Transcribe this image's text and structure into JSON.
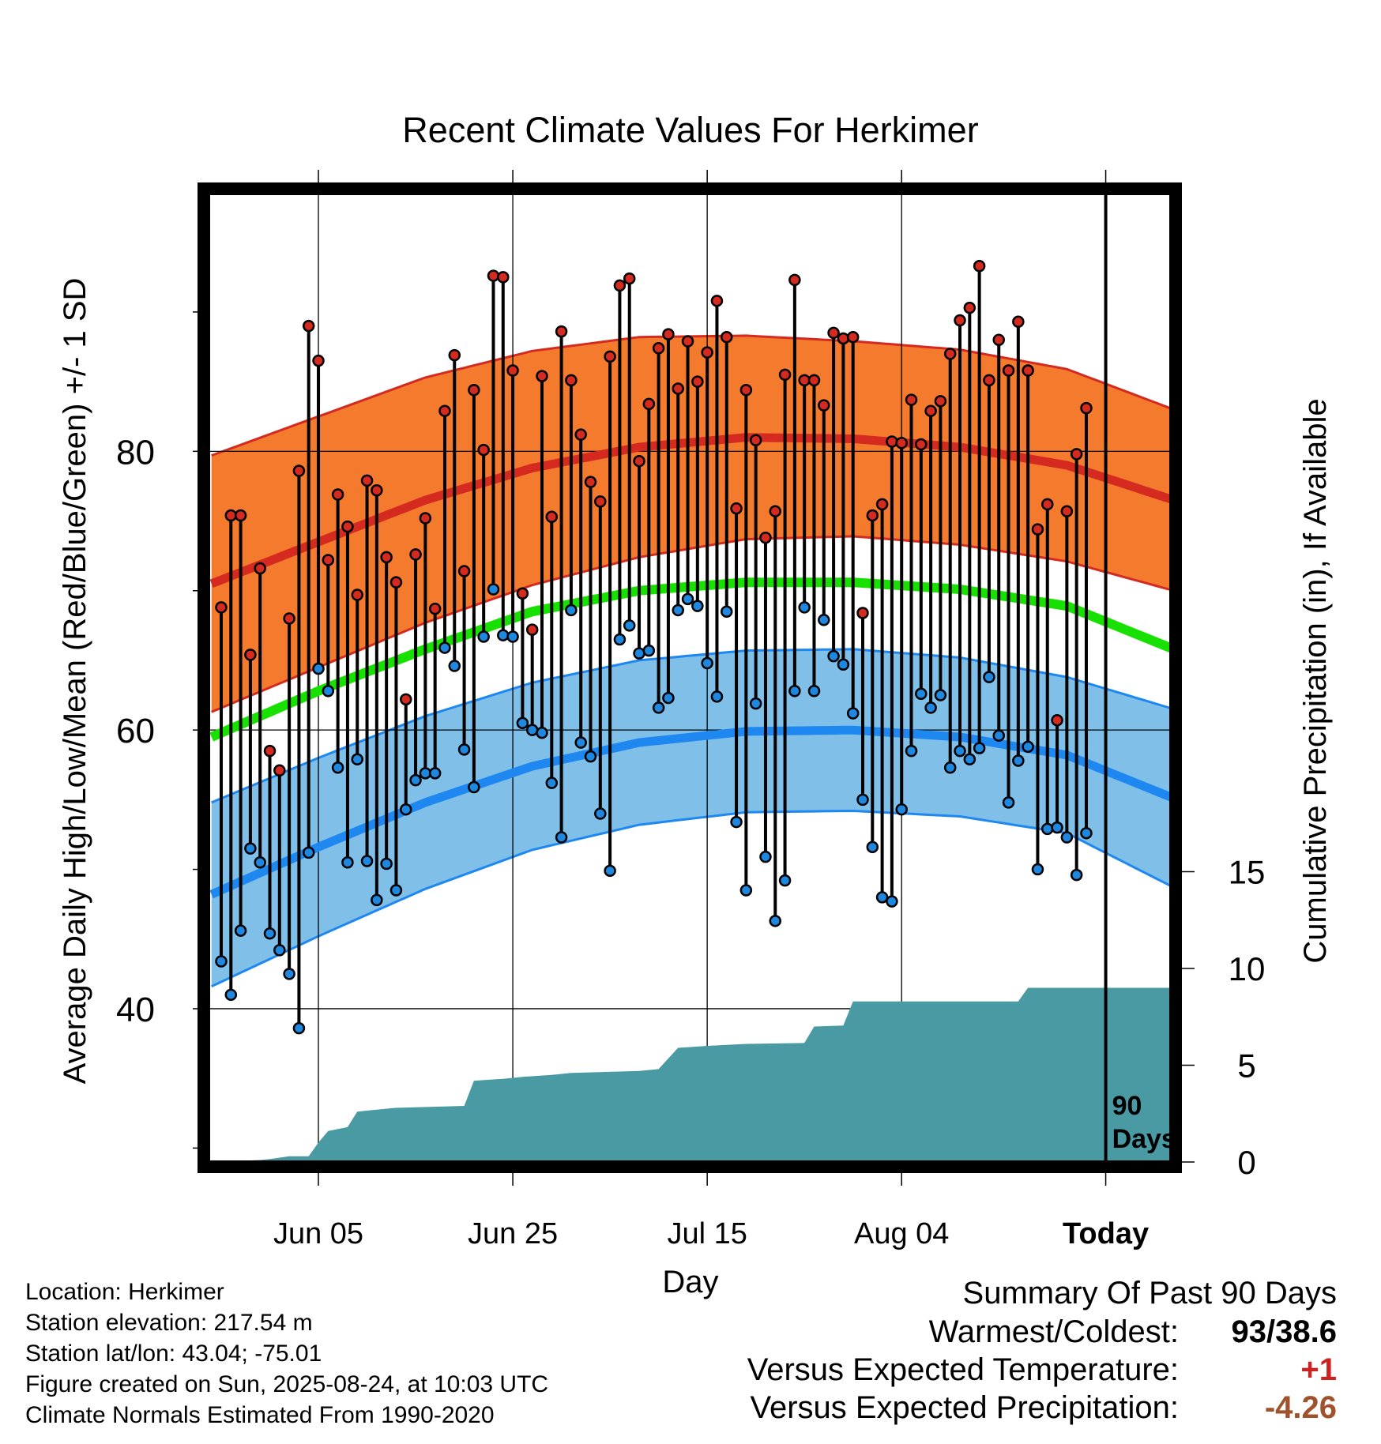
{
  "chart_data": {
    "type": "line",
    "title": "Recent Climate Values For Herkimer",
    "xlabel": "Day",
    "ylabel_left": "Average Daily High/Low/Mean (Red/Blue/Green) +/- 1 SD",
    "ylabel_right": "Cumulative Precipitation (in), If Available",
    "x_tick_labels": [
      "Jun 05",
      "Jun 25",
      "Jul 15",
      "Aug 04",
      "Today"
    ],
    "y_left_ticks": [
      "40",
      "60",
      "80"
    ],
    "y_right_ticks": [
      "0",
      "5",
      "10",
      "15"
    ],
    "ylim_left": [
      29.0,
      98.5
    ],
    "ylim_right": [
      0,
      50
    ],
    "today_marker_label": [
      "90",
      "Days"
    ],
    "grid": true,
    "colors": {
      "high_band": "#f47b2e",
      "high_line": "#d42a20",
      "low_band": "#7fbfe8",
      "low_line": "#1e88f0",
      "mean_line": "#18e000",
      "precip": "#4a9aa3",
      "high_dot": "#d42a20",
      "low_dot": "#1e88e0"
    },
    "normal_high": [
      70.5,
      73.5,
      76.5,
      78.8,
      80.3,
      81.0,
      80.9,
      80.3,
      79.0,
      76.5
    ],
    "normal_high_sd": [
      9.2,
      9.0,
      8.8,
      8.4,
      7.9,
      7.3,
      7.0,
      7.0,
      6.9,
      6.5
    ],
    "normal_low": [
      48.2,
      51.6,
      54.8,
      57.4,
      59.1,
      59.9,
      60.0,
      59.5,
      58.2,
      55.1
    ],
    "normal_low_sd": [
      6.6,
      6.4,
      6.2,
      6.0,
      5.9,
      5.8,
      5.8,
      5.7,
      5.6,
      6.4
    ],
    "normal_mean": [
      59.5,
      62.8,
      65.8,
      68.5,
      70.0,
      70.6,
      70.6,
      70.1,
      68.9,
      65.8
    ],
    "daily_high": [
      68.8,
      75.4,
      75.4,
      65.4,
      71.6,
      58.5,
      57.1,
      68.0,
      78.6,
      89.0,
      86.5,
      72.2,
      76.9,
      74.6,
      69.7,
      77.9,
      77.2,
      72.4,
      70.6,
      62.2,
      72.6,
      75.2,
      68.7,
      82.9,
      86.9,
      71.4,
      84.4,
      80.1,
      92.6,
      92.5,
      85.8,
      69.8,
      67.2,
      85.4,
      75.3,
      88.6,
      85.1,
      81.2,
      77.8,
      76.4,
      86.8,
      91.9,
      92.4,
      79.3,
      83.4,
      87.4,
      88.4,
      84.5,
      87.9,
      85.0,
      87.1,
      90.8,
      88.2,
      75.9,
      84.4,
      80.8,
      73.8,
      75.7,
      85.5,
      92.3,
      85.1,
      85.1,
      83.3,
      88.5,
      88.1,
      88.2,
      68.4,
      75.4,
      76.2,
      80.7,
      80.6,
      83.7,
      80.5,
      82.9,
      83.6,
      87.0,
      89.4,
      90.3,
      93.3,
      85.1,
      88.0,
      85.8,
      89.3,
      85.8,
      74.4,
      76.2,
      60.7,
      75.7,
      79.8,
      83.1
    ],
    "daily_low": [
      43.4,
      41.0,
      45.6,
      51.5,
      50.5,
      45.4,
      44.2,
      42.5,
      38.6,
      51.2,
      64.4,
      62.8,
      57.3,
      50.5,
      57.9,
      50.6,
      47.8,
      50.4,
      48.5,
      54.3,
      56.4,
      56.9,
      56.9,
      65.9,
      64.6,
      58.6,
      55.9,
      66.7,
      70.1,
      66.8,
      66.7,
      60.5,
      60.0,
      59.8,
      56.2,
      52.3,
      68.6,
      59.1,
      58.1,
      54.0,
      49.9,
      66.5,
      67.5,
      65.5,
      65.7,
      61.6,
      62.3,
      68.6,
      69.4,
      68.9,
      64.8,
      62.4,
      68.5,
      53.4,
      48.5,
      61.9,
      50.9,
      46.3,
      49.2,
      62.8,
      68.8,
      62.8,
      67.9,
      65.3,
      64.7,
      61.2,
      55.0,
      51.6,
      48.0,
      47.7,
      54.3,
      58.5,
      62.6,
      61.6,
      62.5,
      57.3,
      58.5,
      57.9,
      58.7,
      63.8,
      59.6,
      54.8,
      57.8,
      58.8,
      50.0,
      52.9,
      53.0,
      52.3,
      49.6,
      52.6
    ],
    "cumulative_precip": [
      [
        0,
        0.0
      ],
      [
        5,
        0.1
      ],
      [
        6,
        0.15
      ],
      [
        8,
        0.3
      ],
      [
        10,
        0.3
      ],
      [
        11,
        1.0
      ],
      [
        12,
        1.6
      ],
      [
        14,
        1.8
      ],
      [
        15,
        2.6
      ],
      [
        17,
        2.7
      ],
      [
        19,
        2.8
      ],
      [
        26,
        2.9
      ],
      [
        27,
        4.2
      ],
      [
        30,
        4.3
      ],
      [
        32,
        4.4
      ],
      [
        35,
        4.5
      ],
      [
        37,
        4.6
      ],
      [
        44,
        4.7
      ],
      [
        46,
        4.8
      ],
      [
        48,
        5.9
      ],
      [
        51,
        6.0
      ],
      [
        53,
        6.05
      ],
      [
        55,
        6.1
      ],
      [
        61,
        6.15
      ],
      [
        62,
        7.0
      ],
      [
        65,
        7.05
      ],
      [
        66,
        8.3
      ],
      [
        83,
        8.3
      ],
      [
        84,
        9.0
      ],
      [
        99,
        9.0
      ]
    ]
  },
  "station_info": {
    "location": "Location: Herkimer",
    "elevation": "Station elevation: 217.54 m",
    "latlon": "Station lat/lon: 43.04; -75.01",
    "created": "Figure created on Sun, 2025-08-24, at 10:03 UTC",
    "normals": "Climate Normals Estimated From 1990-2020"
  },
  "summary": {
    "heading": "Summary Of Past 90 Days",
    "warmest_coldest_label": "Warmest/Coldest:",
    "warmest_coldest_value": "93/38.6",
    "temp_label": "Versus Expected Temperature:",
    "temp_value": "+1",
    "temp_color": "#cc2222",
    "precip_label": "Versus Expected Precipitation:",
    "precip_value": "-4.26",
    "precip_color": "#a0522d"
  }
}
